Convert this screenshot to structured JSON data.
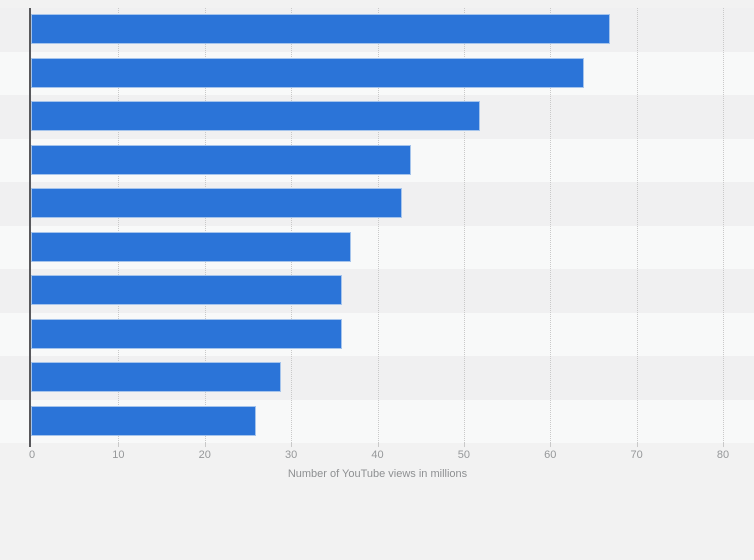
{
  "chart_data": {
    "type": "bar",
    "orientation": "horizontal",
    "title": "",
    "xlabel": "Number of YouTube views in millions",
    "ylabel": "",
    "xlim": [
      0,
      80
    ],
    "x_ticks": [
      0,
      10,
      20,
      30,
      40,
      50,
      60,
      70,
      80
    ],
    "x_tick_labels": [
      "0",
      "10",
      "20",
      "30",
      "40",
      "50",
      "60",
      "70",
      "80"
    ],
    "grid": "vertical-dotted",
    "legend": "none",
    "categories": [
      "",
      "",
      "",
      "",
      "",
      "",
      "",
      "",
      "",
      ""
    ],
    "values": [
      67,
      64,
      52,
      44,
      43,
      37,
      36,
      36,
      29,
      26
    ],
    "colors": {
      "bar_fill": "#2b74d8",
      "bar_stroke": "#a5c4ec",
      "page_background": "#f2f2f2",
      "band_dark": "#f0f0f1",
      "band_light": "#f8f9f9",
      "gridline": "#c9c9c9",
      "axis_line": "#58585b",
      "tick_label": "#96989a",
      "axis_label": "#8e9092"
    }
  }
}
